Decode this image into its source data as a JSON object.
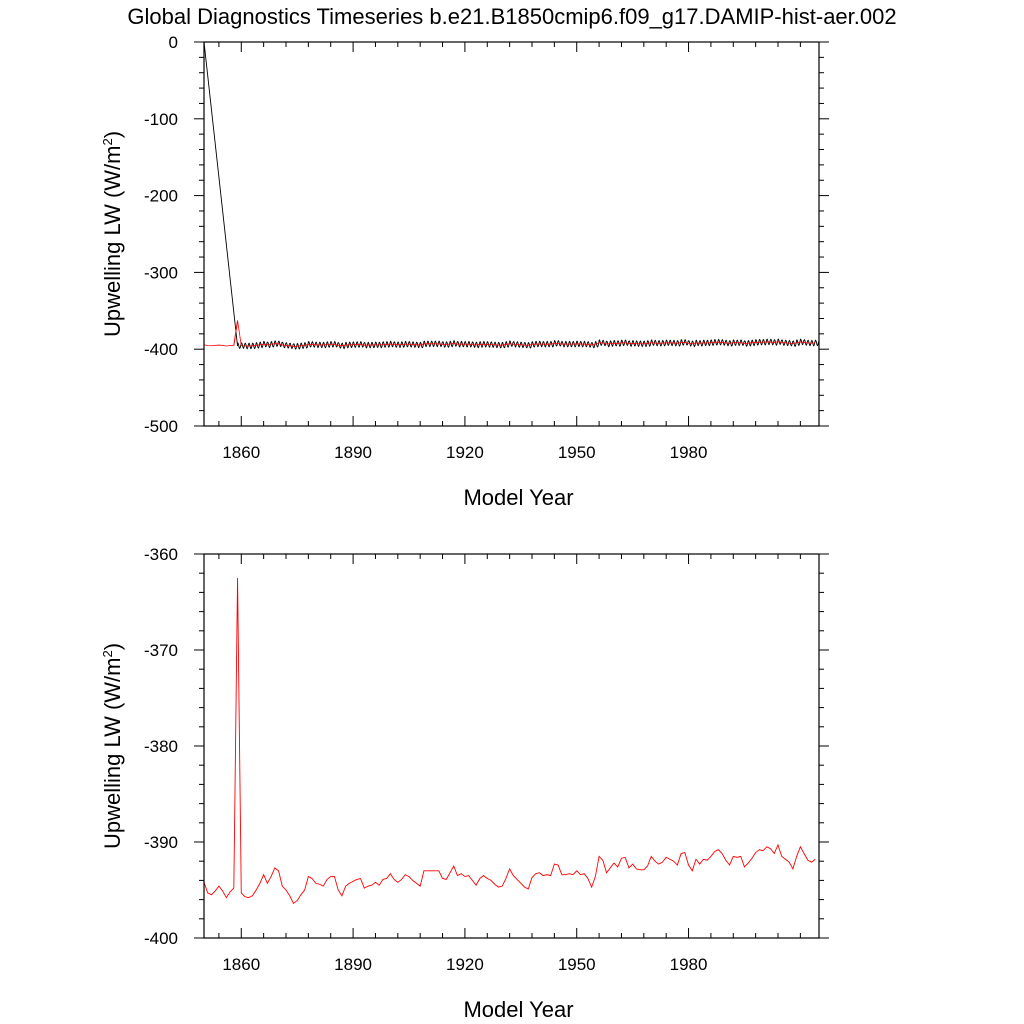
{
  "title": "Global Diagnostics Timeseries b.e21.B1850cmip6.f09_g17.DAMIP-hist-aer.002",
  "colors": {
    "monthly": "#000000",
    "annual": "#ff0000",
    "axes": "#000000"
  },
  "chart_data": [
    {
      "type": "line",
      "xlabel": "Model Year",
      "ylabel": "Upwelling LW (W/m",
      "ylabel_sup": "2",
      "ylabel_close": ")",
      "xlim": [
        1850,
        2015
      ],
      "ylim": [
        -500,
        0
      ],
      "xticks": [
        1860,
        1890,
        1920,
        1950,
        1980
      ],
      "yticks": [
        0,
        -100,
        -200,
        -300,
        -400,
        -500
      ],
      "grid": false,
      "legend": "none",
      "series": [
        {
          "color": "#000000",
          "style": "monthly",
          "x": [
            1850,
            1859
          ],
          "y": [
            0,
            -396
          ],
          "seasonal_amplitude": 3.5,
          "note_shape": "monthly values oscillate around annual mean from 1859 onward"
        },
        {
          "color": "#ff0000",
          "style": "annual",
          "x": [
            1858,
            1859
          ],
          "y": [
            -395.5,
            -362.5
          ]
        }
      ]
    },
    {
      "type": "line",
      "xlabel": "Model Year",
      "ylabel": "Upwelling LW (W/m",
      "ylabel_sup": "2",
      "ylabel_close": ")",
      "xlim": [
        1850,
        2015
      ],
      "ylim": [
        -400,
        -360
      ],
      "xticks": [
        1860,
        1890,
        1920,
        1950,
        1980
      ],
      "yticks": [
        -360,
        -370,
        -380,
        -390,
        -400
      ],
      "grid": false,
      "legend": "none",
      "series": [
        {
          "color": "#ff0000",
          "style": "annual",
          "x": [
            1850,
            1851,
            1852,
            1853,
            1854,
            1855,
            1856,
            1857,
            1858,
            1859,
            1860,
            1861,
            1862,
            1863,
            1864,
            1865,
            1866,
            1867,
            1868,
            1869,
            1870,
            1871,
            1872,
            1873,
            1874,
            1875,
            1876,
            1877,
            1878,
            1879,
            1880,
            1881,
            1882,
            1883,
            1884,
            1885,
            1886,
            1887,
            1888,
            1889,
            1890,
            1891,
            1892,
            1893,
            1894,
            1895,
            1896,
            1897,
            1898,
            1899,
            1900,
            1901,
            1902,
            1903,
            1904,
            1905,
            1906,
            1907,
            1908,
            1909,
            1910,
            1911,
            1912,
            1913,
            1914,
            1915,
            1916,
            1917,
            1918,
            1919,
            1920,
            1921,
            1922,
            1923,
            1924,
            1925,
            1926,
            1927,
            1928,
            1929,
            1930,
            1931,
            1932,
            1933,
            1934,
            1935,
            1936,
            1937,
            1938,
            1939,
            1940,
            1941,
            1942,
            1943,
            1944,
            1945,
            1946,
            1947,
            1948,
            1949,
            1950,
            1951,
            1952,
            1953,
            1954,
            1955,
            1956,
            1957,
            1958,
            1959,
            1960,
            1961,
            1962,
            1963,
            1964,
            1965,
            1966,
            1967,
            1968,
            1969,
            1970,
            1971,
            1972,
            1973,
            1974,
            1975,
            1976,
            1977,
            1978,
            1979,
            1980,
            1981,
            1982,
            1983,
            1984,
            1985,
            1986,
            1987,
            1988,
            1989,
            1990,
            1991,
            1992,
            1993,
            1994,
            1995,
            1996,
            1997,
            1998,
            1999,
            2000,
            2001,
            2002,
            2003,
            2004,
            2005,
            2006,
            2007,
            2008,
            2009,
            2010,
            2011,
            2012,
            2013,
            2014
          ],
          "y": [
            -394.2,
            -395.3,
            -395.5,
            -395.1,
            -394.6,
            -395.1,
            -395.8,
            -395.2,
            -394.8,
            -362.5,
            -395.3,
            -395.7,
            -395.8,
            -395.6,
            -395.0,
            -394.3,
            -393.4,
            -394.3,
            -393.6,
            -392.7,
            -393.0,
            -394.6,
            -395.0,
            -395.6,
            -396.4,
            -396.1,
            -395.5,
            -395.0,
            -393.6,
            -393.8,
            -394.3,
            -394.4,
            -394.6,
            -393.9,
            -393.6,
            -393.6,
            -395.0,
            -395.6,
            -394.6,
            -394.3,
            -394.1,
            -393.9,
            -393.8,
            -394.8,
            -394.6,
            -394.5,
            -394.2,
            -394.5,
            -393.9,
            -393.8,
            -393.3,
            -393.9,
            -394.2,
            -393.9,
            -393.4,
            -393.6,
            -394.0,
            -394.3,
            -394.6,
            -393.0,
            -393.0,
            -393.0,
            -393.0,
            -393.0,
            -393.8,
            -393.9,
            -393.2,
            -392.5,
            -393.5,
            -393.3,
            -393.6,
            -393.5,
            -394.0,
            -394.5,
            -393.8,
            -393.5,
            -393.8,
            -394.0,
            -394.4,
            -394.7,
            -394.6,
            -393.8,
            -392.8,
            -393.5,
            -393.9,
            -394.3,
            -394.7,
            -394.9,
            -393.7,
            -393.3,
            -393.2,
            -393.5,
            -393.4,
            -393.5,
            -392.3,
            -392.4,
            -393.4,
            -393.4,
            -393.3,
            -393.4,
            -393.0,
            -393.4,
            -393.3,
            -393.8,
            -394.7,
            -393.6,
            -391.5,
            -391.9,
            -393.2,
            -392.7,
            -392.2,
            -392.6,
            -391.7,
            -391.6,
            -392.7,
            -392.3,
            -392.8,
            -392.9,
            -392.9,
            -392.5,
            -391.5,
            -392.0,
            -392.3,
            -392.1,
            -391.6,
            -391.8,
            -392.0,
            -392.4,
            -391.2,
            -391.1,
            -392.4,
            -393.0,
            -391.8,
            -392.3,
            -391.8,
            -391.9,
            -391.5,
            -391.0,
            -390.8,
            -391.2,
            -391.9,
            -392.4,
            -391.5,
            -391.6,
            -391.5,
            -392.6,
            -392.2,
            -391.7,
            -391.1,
            -390.8,
            -390.9,
            -390.5,
            -390.7,
            -391.2,
            -390.3,
            -391.5,
            -391.8,
            -392.1,
            -392.8,
            -391.5,
            -390.5,
            -391.2,
            -391.9,
            -392.1,
            -391.8
          ]
        }
      ]
    }
  ]
}
